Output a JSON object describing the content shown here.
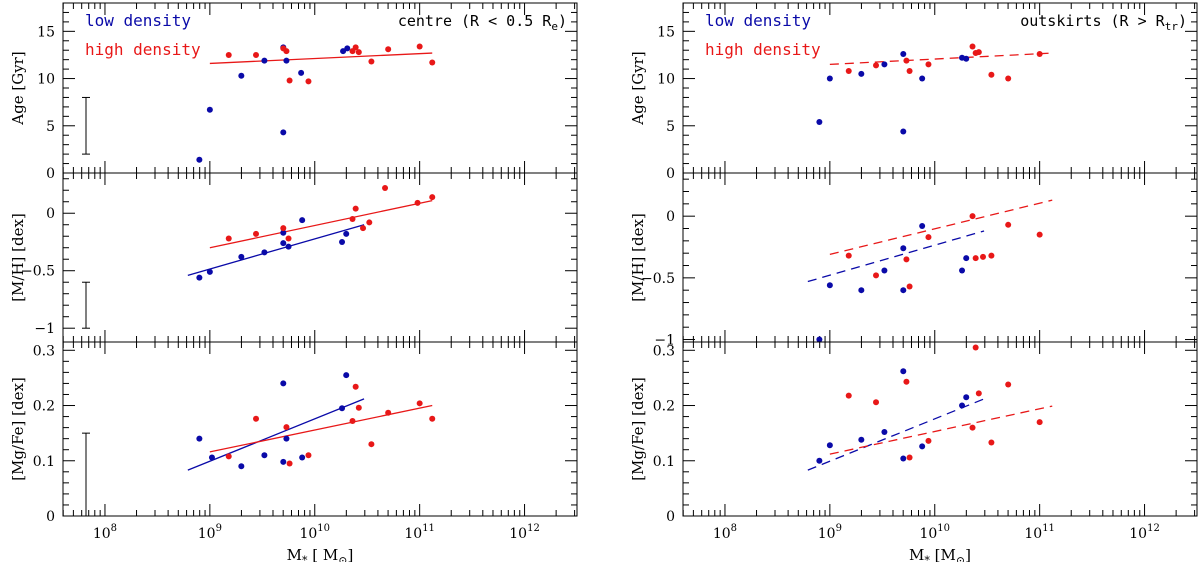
{
  "chart_data": [
    {
      "type": "scatter",
      "panel": "left",
      "title": "centre (R < 0.5 R",
      "title_sub": "e",
      "title_end": ")",
      "xlabel": "M",
      "xlabel_sub": "*",
      "xlabel_unit": " [ M",
      "xlabel_unit_sub": "⊙",
      "xlabel_end": "]",
      "xlim_log10": [
        7.6,
        12.5
      ],
      "x_ticks": [
        {
          "exp": 8,
          "base": "10",
          "sup": "8"
        },
        {
          "exp": 9,
          "base": "10",
          "sup": "9"
        },
        {
          "exp": 10,
          "base": "10",
          "sup": "10"
        },
        {
          "exp": 11,
          "base": "10",
          "sup": "11"
        },
        {
          "exp": 12,
          "base": "10",
          "sup": "12"
        }
      ],
      "legend": [
        {
          "label": "low density",
          "color": "#0a0aa8"
        },
        {
          "label": "high density",
          "color": "#e81818"
        }
      ],
      "fit_style": "solid",
      "rows": [
        {
          "ylabel": "Age [Gyr]",
          "ylim": [
            0,
            18
          ],
          "y_ticks": [
            {
              "v": 0,
              "t": "0"
            },
            {
              "v": 5,
              "t": "5"
            },
            {
              "v": 10,
              "t": "10"
            },
            {
              "v": 15,
              "t": "15"
            }
          ],
          "y_minor": [
            1,
            2,
            3,
            4,
            6,
            7,
            8,
            9,
            11,
            12,
            13,
            14,
            16,
            17
          ],
          "errorbar": [
            2,
            8
          ],
          "low": [
            [
              8.9,
              1.4
            ],
            [
              9.0,
              6.7
            ],
            [
              9.3,
              10.3
            ],
            [
              9.52,
              11.9
            ],
            [
              9.7,
              13.3
            ],
            [
              9.7,
              4.3
            ],
            [
              9.73,
              11.9
            ],
            [
              9.87,
              10.6
            ],
            [
              10.27,
              12.9
            ],
            [
              10.31,
              13.2
            ]
          ],
          "high": [
            [
              9.18,
              12.5
            ],
            [
              9.44,
              12.5
            ],
            [
              9.7,
              13.2
            ],
            [
              9.73,
              12.9
            ],
            [
              9.76,
              9.8
            ],
            [
              9.94,
              9.7
            ],
            [
              10.36,
              12.9
            ],
            [
              10.39,
              13.3
            ],
            [
              10.42,
              12.8
            ],
            [
              10.54,
              11.8
            ],
            [
              10.7,
              13.1
            ],
            [
              11.0,
              13.4
            ],
            [
              11.12,
              11.7
            ]
          ],
          "fit_low": null,
          "fit_high": [
            [
              9.0,
              11.6
            ],
            [
              11.12,
              12.7
            ]
          ]
        },
        {
          "ylabel": "[M/H] [dex]",
          "ylim": [
            -1.12,
            0.35
          ],
          "y_ticks": [
            {
              "v": -1,
              "t": "−1"
            },
            {
              "v": -0.5,
              "t": "−0.5"
            },
            {
              "v": 0,
              "t": "0"
            }
          ],
          "y_minor": [
            -0.9,
            -0.8,
            -0.7,
            -0.6,
            -0.4,
            -0.3,
            -0.2,
            -0.1,
            0.1,
            0.2,
            0.3
          ],
          "errorbar": [
            -1.0,
            -0.6
          ],
          "low": [
            [
              8.9,
              -0.56
            ],
            [
              9.0,
              -0.51
            ],
            [
              9.3,
              -0.38
            ],
            [
              9.52,
              -0.34
            ],
            [
              9.7,
              -0.26
            ],
            [
              9.7,
              -0.17
            ],
            [
              9.75,
              -0.29
            ],
            [
              9.88,
              -0.06
            ],
            [
              10.26,
              -0.25
            ],
            [
              10.3,
              -0.18
            ]
          ],
          "high": [
            [
              9.18,
              -0.22
            ],
            [
              9.44,
              -0.18
            ],
            [
              9.7,
              -0.13
            ],
            [
              9.75,
              -0.22
            ],
            [
              10.36,
              -0.05
            ],
            [
              10.39,
              0.04
            ],
            [
              10.46,
              -0.13
            ],
            [
              10.52,
              -0.08
            ],
            [
              10.67,
              0.22
            ],
            [
              10.98,
              0.09
            ],
            [
              11.12,
              0.14
            ]
          ],
          "fit_low": [
            [
              8.79,
              -0.54
            ],
            [
              10.47,
              -0.1
            ]
          ],
          "fit_high": [
            [
              9.0,
              -0.3
            ],
            [
              11.12,
              0.11
            ]
          ]
        },
        {
          "ylabel": "[Mg/Fe] [dex]",
          "ylim": [
            0,
            0.315
          ],
          "y_ticks": [
            {
              "v": 0,
              "t": "0"
            },
            {
              "v": 0.1,
              "t": "0.1"
            },
            {
              "v": 0.2,
              "t": "0.2"
            },
            {
              "v": 0.3,
              "t": "0.3"
            }
          ],
          "y_minor": [
            0.02,
            0.04,
            0.06,
            0.08,
            0.12,
            0.14,
            0.16,
            0.18,
            0.22,
            0.24,
            0.26,
            0.28
          ],
          "errorbar": [
            0.0,
            0.15
          ],
          "low": [
            [
              8.9,
              0.14
            ],
            [
              9.02,
              0.106
            ],
            [
              9.3,
              0.09
            ],
            [
              9.52,
              0.11
            ],
            [
              9.7,
              0.24
            ],
            [
              9.7,
              0.098
            ],
            [
              9.73,
              0.14
            ],
            [
              9.88,
              0.106
            ],
            [
              10.26,
              0.195
            ],
            [
              10.3,
              0.255
            ]
          ],
          "high": [
            [
              9.18,
              0.108
            ],
            [
              9.44,
              0.176
            ],
            [
              9.73,
              0.161
            ],
            [
              9.76,
              0.095
            ],
            [
              9.94,
              0.11
            ],
            [
              10.36,
              0.172
            ],
            [
              10.39,
              0.234
            ],
            [
              10.42,
              0.196
            ],
            [
              10.54,
              0.13
            ],
            [
              10.7,
              0.187
            ],
            [
              11.0,
              0.204
            ],
            [
              11.12,
              0.176
            ]
          ],
          "fit_low": [
            [
              8.79,
              0.083
            ],
            [
              10.47,
              0.212
            ]
          ],
          "fit_high": [
            [
              9.0,
              0.116
            ],
            [
              11.12,
              0.2
            ]
          ]
        }
      ]
    },
    {
      "type": "scatter",
      "panel": "right",
      "title": "outskirts (R > R",
      "title_sub": "tr",
      "title_end": ")",
      "xlabel": "M",
      "xlabel_sub": "*",
      "xlabel_unit": " [M",
      "xlabel_unit_sub": "⊙",
      "xlabel_end": "]",
      "xlim_log10": [
        7.6,
        12.5
      ],
      "x_ticks": [
        {
          "exp": 8,
          "base": "10",
          "sup": "8"
        },
        {
          "exp": 9,
          "base": "10",
          "sup": "9"
        },
        {
          "exp": 10,
          "base": "10",
          "sup": "10"
        },
        {
          "exp": 11,
          "base": "10",
          "sup": "11"
        },
        {
          "exp": 12,
          "base": "10",
          "sup": "12"
        }
      ],
      "legend": [
        {
          "label": "low density",
          "color": "#0a0aa8"
        },
        {
          "label": "high density",
          "color": "#e81818"
        }
      ],
      "fit_style": "dashed",
      "rows": [
        {
          "ylabel": "Age [Gyr]",
          "ylim": [
            0,
            18
          ],
          "y_ticks": [
            {
              "v": 0,
              "t": "0"
            },
            {
              "v": 5,
              "t": "5"
            },
            {
              "v": 10,
              "t": "10"
            },
            {
              "v": 15,
              "t": "15"
            }
          ],
          "y_minor": [
            1,
            2,
            3,
            4,
            6,
            7,
            8,
            9,
            11,
            12,
            13,
            14,
            16,
            17
          ],
          "errorbar": null,
          "low": [
            [
              8.9,
              5.4
            ],
            [
              9.0,
              10.0
            ],
            [
              9.3,
              10.5
            ],
            [
              9.52,
              11.5
            ],
            [
              9.7,
              12.6
            ],
            [
              9.7,
              4.4
            ],
            [
              9.88,
              10.0
            ],
            [
              10.26,
              12.2
            ],
            [
              10.3,
              12.1
            ]
          ],
          "high": [
            [
              9.18,
              10.8
            ],
            [
              9.44,
              11.4
            ],
            [
              9.73,
              11.9
            ],
            [
              9.76,
              10.8
            ],
            [
              9.94,
              11.5
            ],
            [
              10.36,
              13.4
            ],
            [
              10.39,
              12.7
            ],
            [
              10.42,
              12.8
            ],
            [
              10.54,
              10.4
            ],
            [
              10.7,
              10.0
            ],
            [
              11.0,
              12.6
            ]
          ],
          "fit_low": null,
          "fit_high": [
            [
              9.0,
              11.5
            ],
            [
              11.12,
              12.7
            ]
          ]
        },
        {
          "ylabel": "[M/H] [dex]",
          "ylim": [
            -1.02,
            0.35
          ],
          "y_ticks": [
            {
              "v": -1,
              "t": "−1"
            },
            {
              "v": -0.5,
              "t": "−0.5"
            },
            {
              "v": 0,
              "t": "0"
            }
          ],
          "y_minor": [
            -0.9,
            -0.8,
            -0.7,
            -0.6,
            -0.4,
            -0.3,
            -0.2,
            -0.1,
            0.1,
            0.2,
            0.3
          ],
          "errorbar": null,
          "low": [
            [
              8.9,
              -1.0
            ],
            [
              9.0,
              -0.56
            ],
            [
              9.3,
              -0.6
            ],
            [
              9.52,
              -0.44
            ],
            [
              9.7,
              -0.26
            ],
            [
              9.7,
              -0.6
            ],
            [
              9.88,
              -0.08
            ],
            [
              10.26,
              -0.44
            ],
            [
              10.3,
              -0.34
            ]
          ],
          "high": [
            [
              9.18,
              -0.32
            ],
            [
              9.44,
              -0.48
            ],
            [
              9.73,
              -0.35
            ],
            [
              9.76,
              -0.57
            ],
            [
              9.94,
              -0.17
            ],
            [
              10.36,
              0.0
            ],
            [
              10.39,
              -0.34
            ],
            [
              10.46,
              -0.33
            ],
            [
              10.54,
              -0.32
            ],
            [
              10.7,
              -0.07
            ],
            [
              11.0,
              -0.15
            ]
          ],
          "fit_low": [
            [
              8.79,
              -0.53
            ],
            [
              10.47,
              -0.12
            ]
          ],
          "fit_high": [
            [
              9.0,
              -0.31
            ],
            [
              11.12,
              0.13
            ]
          ]
        },
        {
          "ylabel": "[Mg/Fe] [dex]",
          "ylim": [
            0,
            0.315
          ],
          "y_ticks": [
            {
              "v": 0,
              "t": "0"
            },
            {
              "v": 0.1,
              "t": "0.1"
            },
            {
              "v": 0.2,
              "t": "0.2"
            },
            {
              "v": 0.3,
              "t": "0.3"
            }
          ],
          "y_minor": [
            0.02,
            0.04,
            0.06,
            0.08,
            0.12,
            0.14,
            0.16,
            0.18,
            0.22,
            0.24,
            0.26,
            0.28
          ],
          "errorbar": null,
          "low": [
            [
              8.9,
              0.1
            ],
            [
              9.0,
              0.128
            ],
            [
              9.3,
              0.138
            ],
            [
              9.52,
              0.152
            ],
            [
              9.7,
              0.262
            ],
            [
              9.7,
              0.104
            ],
            [
              9.88,
              0.126
            ],
            [
              10.26,
              0.2
            ],
            [
              10.3,
              0.215
            ]
          ],
          "high": [
            [
              9.18,
              0.218
            ],
            [
              9.44,
              0.206
            ],
            [
              9.73,
              0.243
            ],
            [
              9.76,
              0.106
            ],
            [
              9.94,
              0.136
            ],
            [
              10.36,
              0.16
            ],
            [
              10.39,
              0.305
            ],
            [
              10.42,
              0.222
            ],
            [
              10.54,
              0.133
            ],
            [
              10.7,
              0.238
            ],
            [
              11.0,
              0.17
            ]
          ],
          "fit_low": [
            [
              8.79,
              0.083
            ],
            [
              10.47,
              0.212
            ]
          ],
          "fit_high": [
            [
              9.0,
              0.112
            ],
            [
              11.12,
              0.199
            ]
          ]
        }
      ]
    }
  ]
}
